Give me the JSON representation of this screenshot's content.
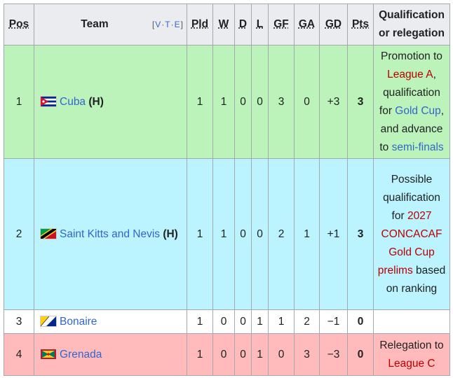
{
  "header": {
    "pos": "Pos",
    "team": "Team",
    "navbar": [
      "V",
      "T",
      "E"
    ],
    "pld": "Pld",
    "w": "W",
    "d": "D",
    "l": "L",
    "gf": "GF",
    "ga": "GA",
    "gd": "GD",
    "pts": "Pts",
    "qualification": "Qualification or relegation"
  },
  "table": {
    "rows": [
      {
        "color": "#bbf3bb",
        "pos": 1,
        "team": "Cuba",
        "host": "(H)",
        "pld": 1,
        "w": 1,
        "d": 0,
        "l": 0,
        "gf": 3,
        "ga": 0,
        "gd": "+3",
        "pts": 3,
        "qualification": [
          {
            "text": "Promotion to"
          },
          {
            "text": "League A",
            "color": "#ba0000"
          },
          {
            "text": ", qualification for"
          },
          {
            "text": "Gold Cup",
            "color": "#3366cc"
          },
          {
            "text": ", and advance to"
          },
          {
            "text": "semi-finals",
            "color": "#3366cc"
          }
        ]
      },
      {
        "color": "#bbf3ff",
        "pos": 2,
        "team": "Saint Kitts and Nevis",
        "host": "(H)",
        "pld": 1,
        "w": 1,
        "d": 0,
        "l": 0,
        "gf": 2,
        "ga": 1,
        "gd": "+1",
        "pts": 3,
        "qualification": [
          {
            "text": "Possible qualification for"
          },
          {
            "text": "2027 CONCACAF Gold Cup prelims",
            "color": "#ba0000"
          },
          {
            "text": "based on ranking"
          }
        ]
      },
      {
        "color": "#ffffff",
        "pos": 3,
        "team": "Bonaire",
        "pld": 1,
        "w": 0,
        "d": 0,
        "l": 1,
        "gf": 1,
        "ga": 2,
        "gd": "−1",
        "pts": 0,
        "qualification": []
      },
      {
        "color": "#ffbbbb",
        "pos": 4,
        "team": "Grenada",
        "pld": 1,
        "w": 0,
        "d": 0,
        "l": 1,
        "gf": 0,
        "ga": 3,
        "gd": "−3",
        "pts": 0,
        "qualification": [
          {
            "text": "Relegation to"
          },
          {
            "text": "League C",
            "color": "#ba0000"
          }
        ]
      }
    ]
  }
}
